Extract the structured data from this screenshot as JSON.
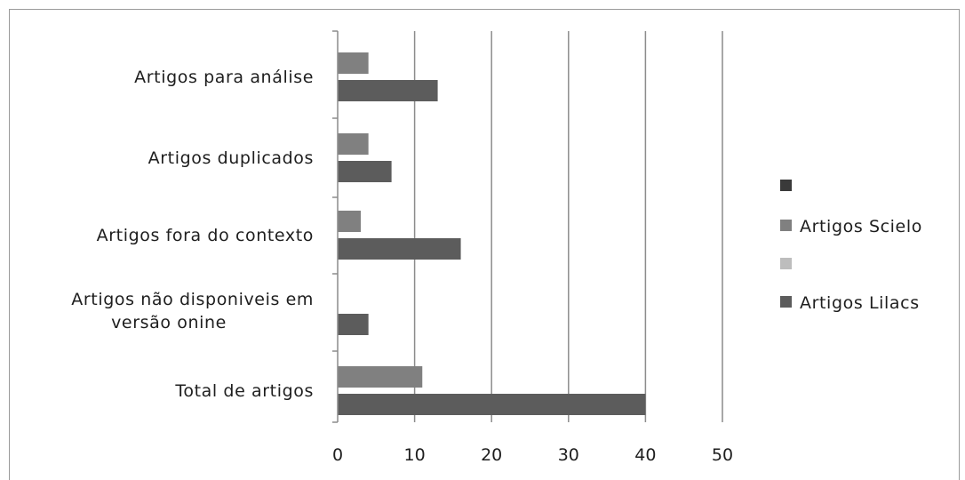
{
  "chart_data": {
    "type": "bar",
    "orientation": "horizontal",
    "categories": [
      "Artigos para análise",
      "Artigos duplicados",
      "Artigos fora do contexto",
      [
        "Artigos não disponiveis em",
        "versão onine"
      ],
      "Total de artigos"
    ],
    "series": [
      {
        "name": "Artigos Scielo",
        "values": [
          4,
          4,
          3,
          0,
          11
        ],
        "color": "#808080"
      },
      {
        "name": "Artigos Lilacs",
        "values": [
          13,
          7,
          16,
          4,
          40
        ],
        "color": "#5c5c5c"
      }
    ],
    "legend": [
      {
        "label": "",
        "color": "#3a3a3a"
      },
      {
        "label": "Artigos Scielo",
        "color": "#808080"
      },
      {
        "label": "",
        "color": "#bdbdbd"
      },
      {
        "label": "Artigos Lilacs",
        "color": "#5c5c5c"
      }
    ],
    "xlim": [
      0,
      50
    ],
    "xticks": [
      0,
      10,
      20,
      30,
      40,
      50
    ],
    "xtick_labels": [
      "0",
      "10",
      "20",
      "30",
      "40",
      "50"
    ],
    "grid": true,
    "legend_position": "right",
    "title": "",
    "xlabel": "",
    "ylabel": ""
  }
}
